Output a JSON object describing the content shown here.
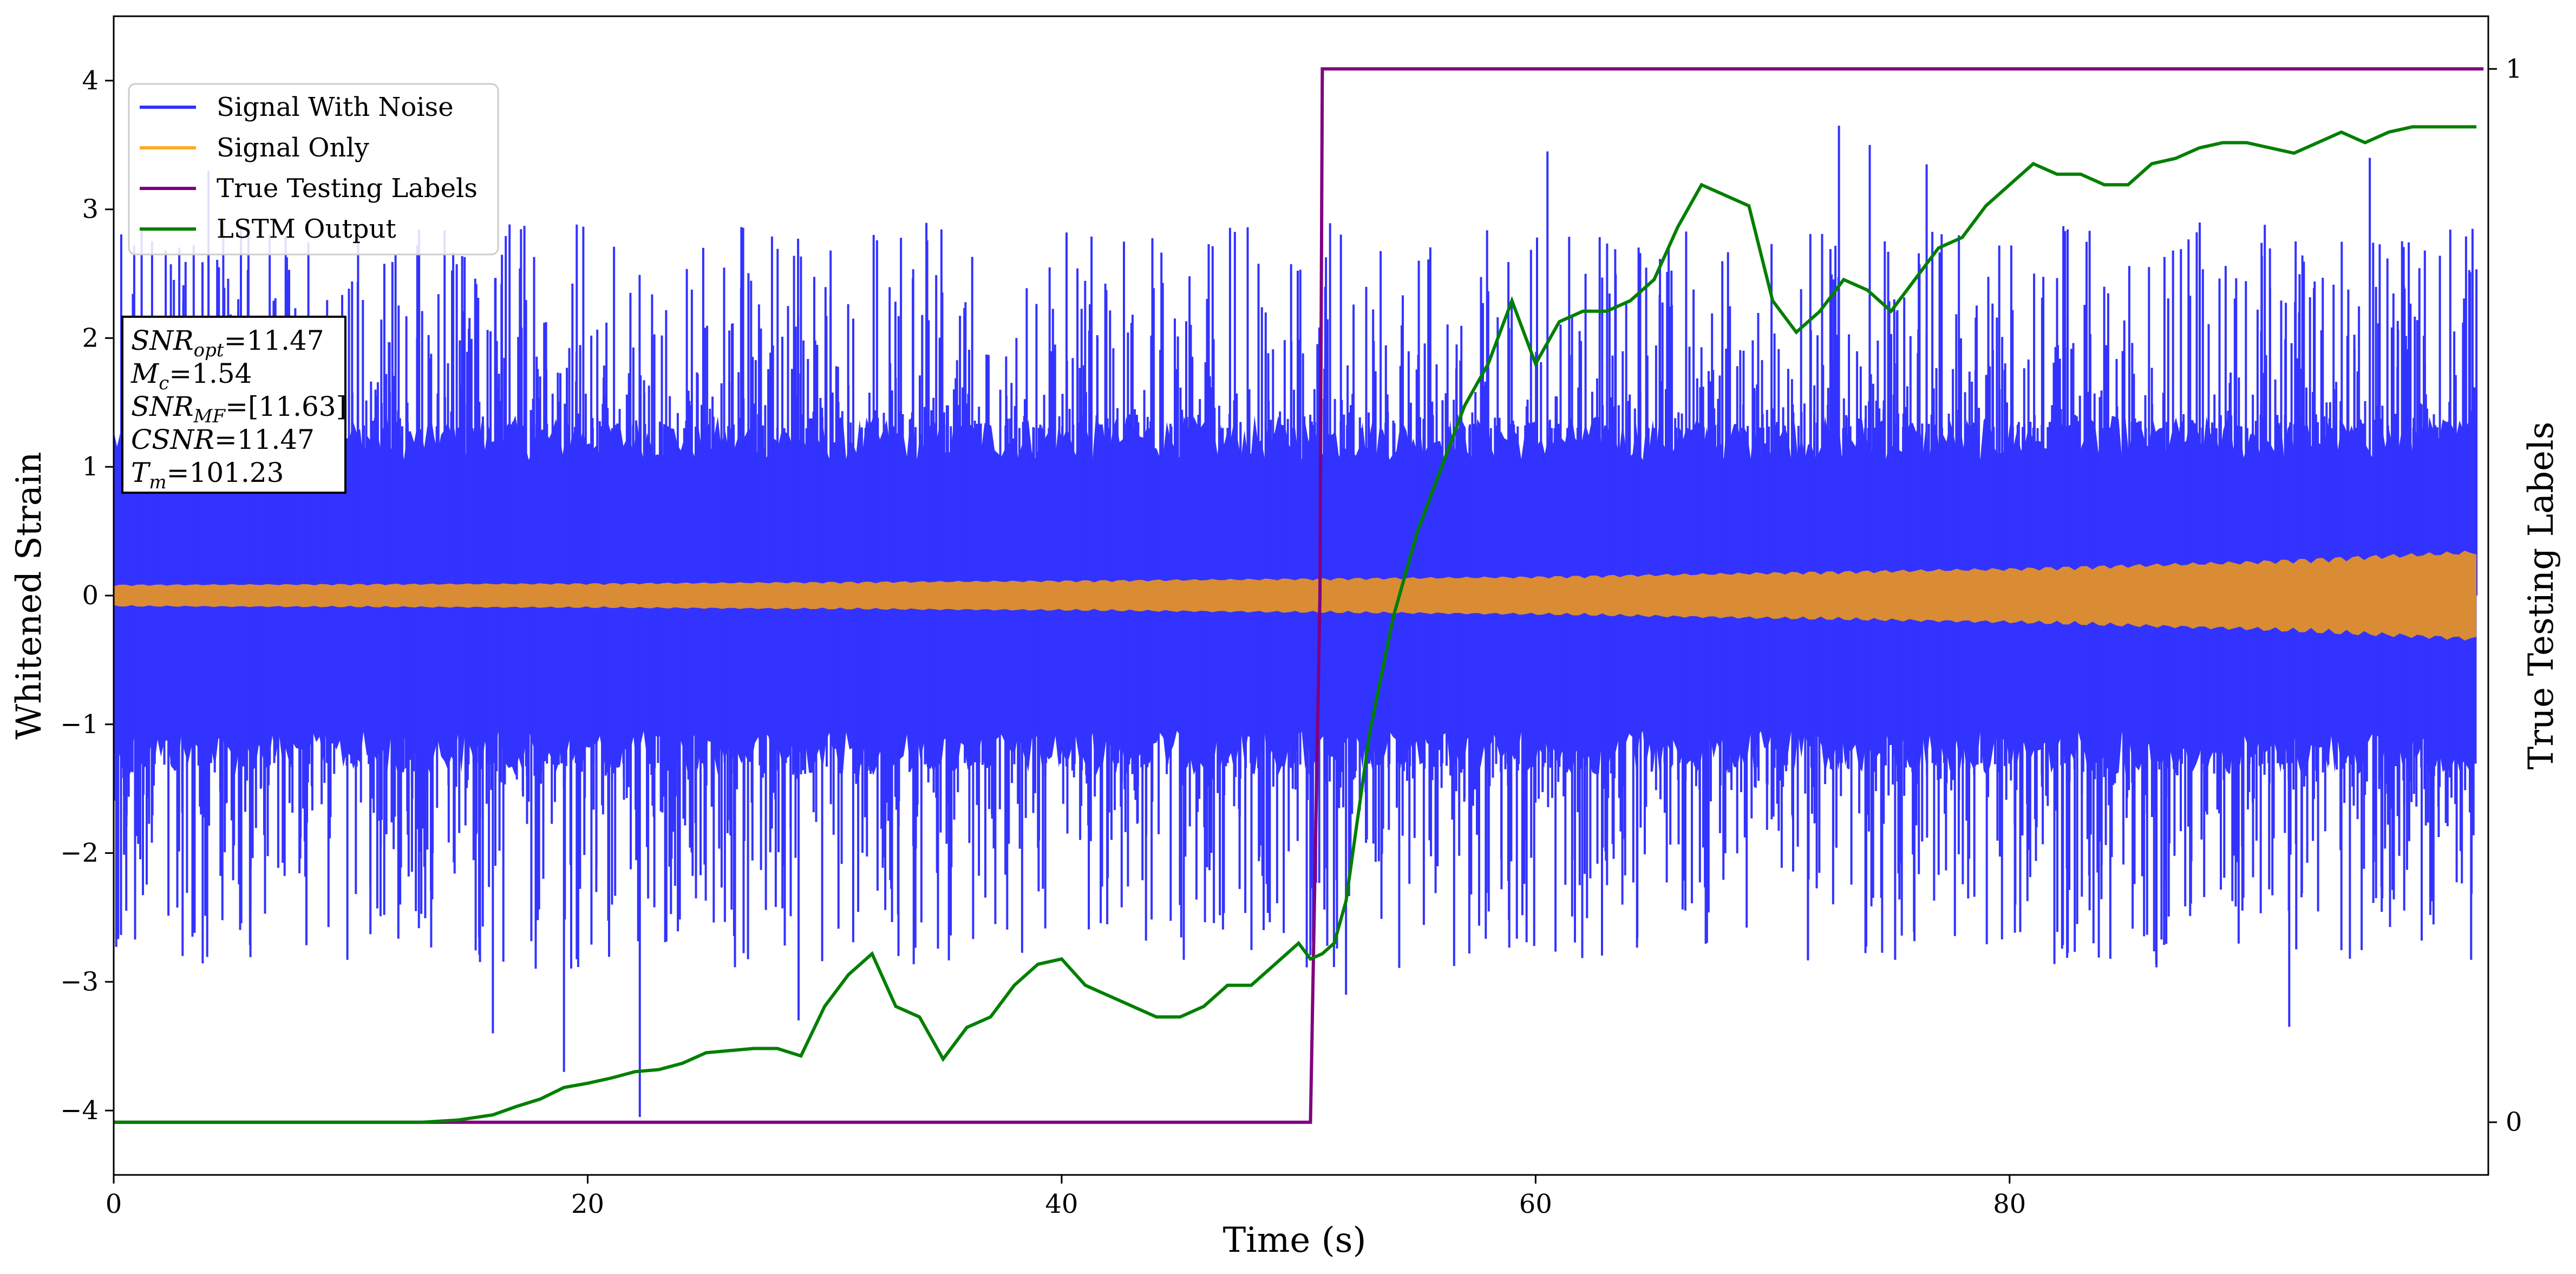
{
  "chart_data": {
    "type": "line",
    "xlabel": "Time (s)",
    "ylabel": "Whitened Strain",
    "ylabel_right": "True Testing Labels",
    "xlim": [
      0,
      100.2
    ],
    "ylim": [
      -4.5,
      4.5
    ],
    "ylim_right": [
      -0.05,
      1.05
    ],
    "x_ticks": [
      0,
      20,
      40,
      60,
      80
    ],
    "y_ticks": [
      -4,
      -3,
      -2,
      -1,
      0,
      1,
      2,
      3,
      4
    ],
    "y_ticks_right": [
      0,
      1
    ],
    "grid": false,
    "legend_position": "upper-left",
    "colors": {
      "noise": "#3333ff",
      "signal": "#d98c33",
      "signal_legend": "#ffaa22",
      "labels": "#800080",
      "lstm": "#007f00"
    },
    "series": [
      {
        "name": "Signal With Noise",
        "axis": "left",
        "description_values": {
          "envelope_upper_approx": [
            [
              0,
              2.3
            ],
            [
              50,
              2.3
            ],
            [
              100,
              2.3
            ]
          ],
          "notable_spikes": [
            {
              "x": 16.0,
              "y": -3.4
            },
            {
              "x": 19.0,
              "y": -3.7
            },
            {
              "x": 22.2,
              "y": -4.05
            },
            {
              "x": 28.9,
              "y": -3.3
            },
            {
              "x": 52.0,
              "y": -3.1
            },
            {
              "x": 72.8,
              "y": 3.65
            },
            {
              "x": 74.1,
              "y": 3.5
            },
            {
              "x": 76.5,
              "y": 3.35
            },
            {
              "x": 91.8,
              "y": -3.35
            },
            {
              "x": 95.2,
              "y": 3.4
            },
            {
              "x": 4.0,
              "y": 3.3
            },
            {
              "x": 60.5,
              "y": 3.45
            }
          ]
        }
      },
      {
        "name": "Signal Only",
        "axis": "left",
        "amplitude_envelope": [
          [
            0,
            0.08
          ],
          [
            20,
            0.09
          ],
          [
            40,
            0.11
          ],
          [
            60,
            0.14
          ],
          [
            80,
            0.2
          ],
          [
            90,
            0.25
          ],
          [
            100,
            0.33
          ]
        ]
      },
      {
        "name": "True Testing Labels",
        "axis": "right",
        "x": [
          0,
          50.5,
          50.9,
          51.0,
          100
        ],
        "y": [
          0,
          0,
          0.5,
          1,
          1
        ]
      },
      {
        "name": "LSTM Output",
        "axis": "right",
        "x": [
          0,
          5,
          10,
          13,
          14.5,
          16,
          17,
          18,
          19,
          20,
          21,
          22,
          23,
          24,
          25,
          26,
          27,
          28,
          29,
          30,
          31,
          32,
          33,
          34,
          35,
          36,
          37,
          38,
          39,
          40,
          41,
          42,
          43,
          44,
          45,
          46,
          47,
          48,
          49,
          50,
          50.5,
          51,
          51.5,
          52,
          53,
          54,
          55,
          56,
          57,
          58,
          59,
          60,
          61,
          62,
          63,
          64,
          65,
          66,
          67,
          68,
          69,
          70,
          71,
          72,
          73,
          74,
          75,
          76,
          77,
          78,
          79,
          80,
          81,
          82,
          83,
          84,
          85,
          86,
          87,
          88,
          89,
          90,
          91,
          92,
          93,
          94,
          95,
          96,
          97,
          98,
          99.7
        ],
        "y": [
          0,
          0,
          0,
          0,
          0.002,
          0.007,
          0.015,
          0.022,
          0.033,
          0.037,
          0.042,
          0.048,
          0.05,
          0.056,
          0.066,
          0.068,
          0.07,
          0.07,
          0.063,
          0.11,
          0.14,
          0.16,
          0.11,
          0.1,
          0.06,
          0.09,
          0.1,
          0.13,
          0.15,
          0.155,
          0.13,
          0.12,
          0.11,
          0.1,
          0.1,
          0.11,
          0.13,
          0.13,
          0.15,
          0.17,
          0.155,
          0.16,
          0.17,
          0.21,
          0.37,
          0.48,
          0.56,
          0.62,
          0.68,
          0.72,
          0.78,
          0.72,
          0.76,
          0.77,
          0.77,
          0.78,
          0.8,
          0.85,
          0.89,
          0.88,
          0.87,
          0.78,
          0.75,
          0.77,
          0.8,
          0.79,
          0.77,
          0.8,
          0.83,
          0.84,
          0.87,
          0.89,
          0.91,
          0.9,
          0.9,
          0.89,
          0.89,
          0.91,
          0.915,
          0.925,
          0.93,
          0.93,
          0.925,
          0.92,
          0.93,
          0.94,
          0.93,
          0.94,
          0.945,
          0.945,
          0.945
        ]
      }
    ]
  },
  "legend": {
    "items": [
      {
        "label": "Signal With Noise",
        "color": "#3333ff"
      },
      {
        "label": "Signal Only",
        "color": "#ffaa22"
      },
      {
        "label": "True Testing Labels",
        "color": "#800080"
      },
      {
        "label": "LSTM Output",
        "color": "#007f00"
      }
    ]
  },
  "info_box": {
    "snr_opt": {
      "main": "SNR",
      "sub": "opt",
      "value": "=11.47"
    },
    "mc": {
      "main": "M",
      "sub": "c",
      "value": "=1.54"
    },
    "snr_mf": {
      "main": "SNR",
      "sub": "MF",
      "value": "=[11.63]"
    },
    "csnr": {
      "main": "CSNR",
      "sub": "",
      "value": "=11.47"
    },
    "tm": {
      "main": "T",
      "sub": "m",
      "value": "=101.23"
    }
  }
}
